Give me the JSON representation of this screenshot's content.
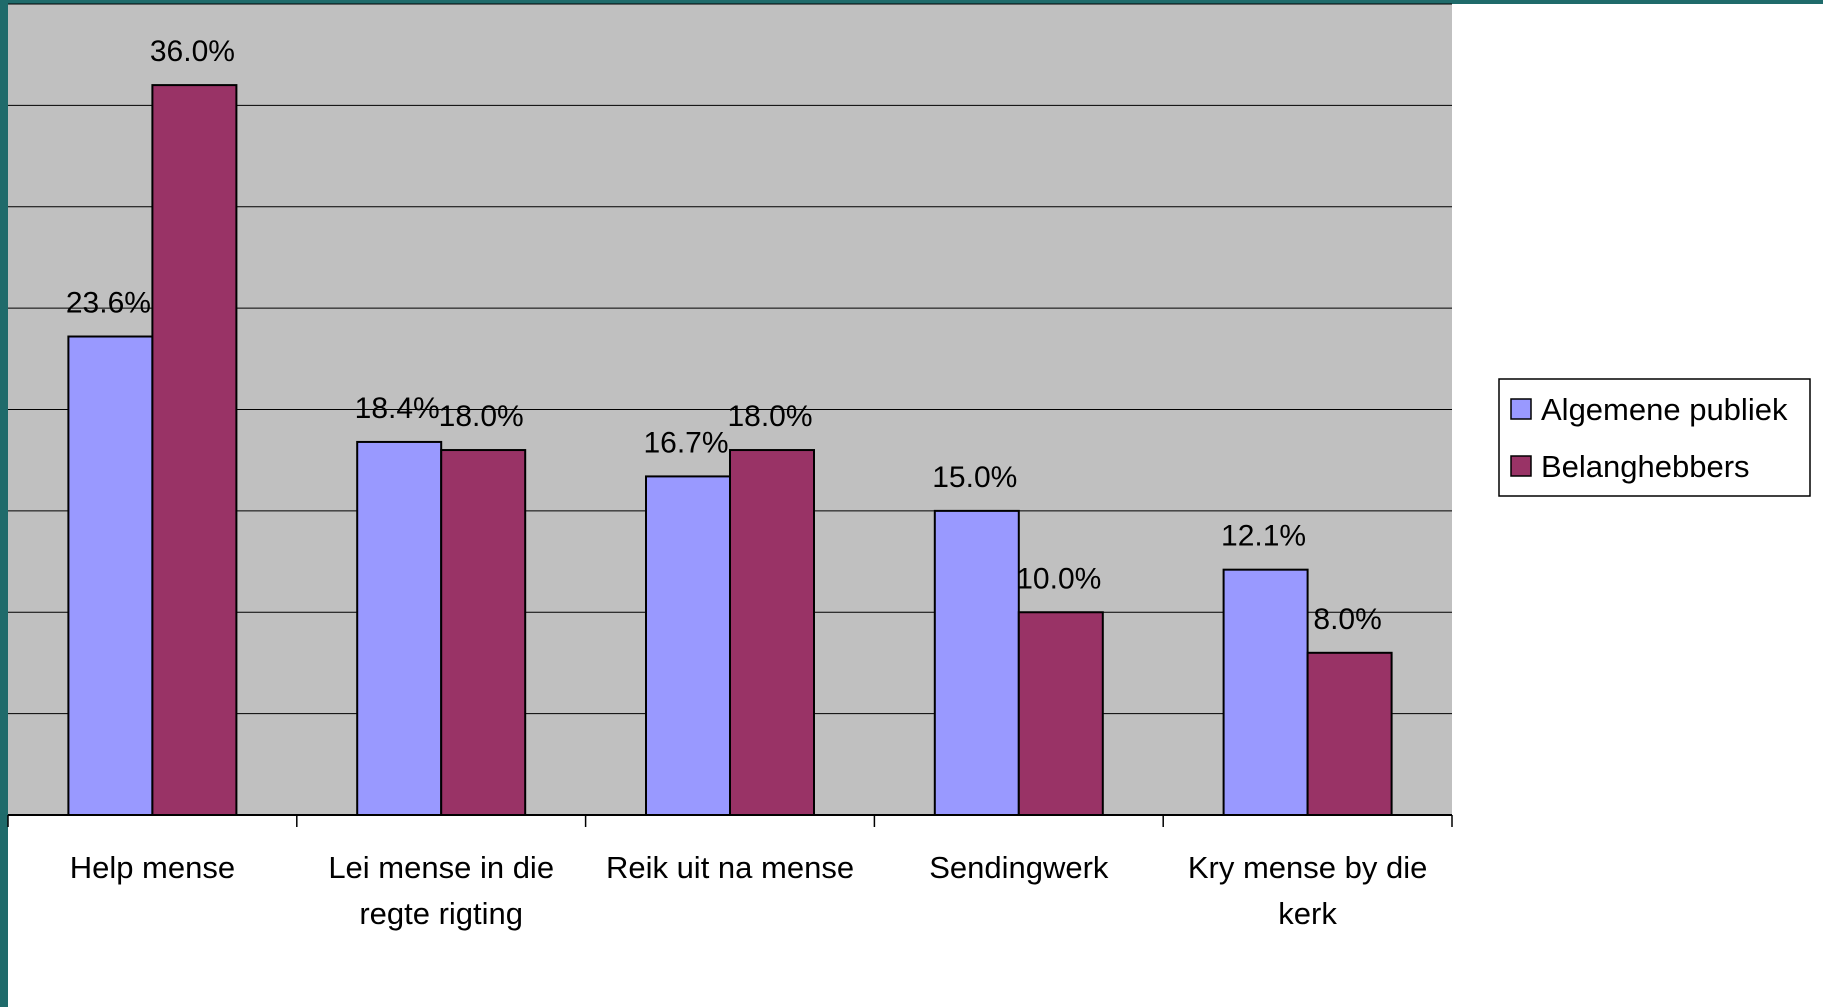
{
  "chart_data": {
    "type": "bar",
    "categories": [
      [
        "Help mense"
      ],
      [
        "Lei mense in die",
        "regte rigting"
      ],
      [
        "Reik uit na mense"
      ],
      [
        "Sendingwerk"
      ],
      [
        "Kry mense by die",
        "kerk"
      ]
    ],
    "series": [
      {
        "name": "Algemene publiek",
        "values": [
          23.6,
          18.4,
          16.7,
          15.0,
          12.1
        ],
        "labels": [
          "23.6%",
          "18.4%",
          "16.7%",
          "15.0%",
          "12.1%"
        ]
      },
      {
        "name": "Belanghebbers",
        "values": [
          36.0,
          18.0,
          18.0,
          10.0,
          8.0
        ],
        "labels": [
          "36.0%",
          "18.0%",
          "18.0%",
          "10.0%",
          "8.0%"
        ]
      }
    ],
    "ylim": [
      0,
      40
    ],
    "y_grid_step": 5,
    "grid": true,
    "legend_position": "right",
    "colors": {
      "series": [
        "#9999ff",
        "#993366"
      ],
      "plot_background": "#c0c0c0",
      "frame_border": "#1f6b6b",
      "gridline": "#000000"
    }
  }
}
